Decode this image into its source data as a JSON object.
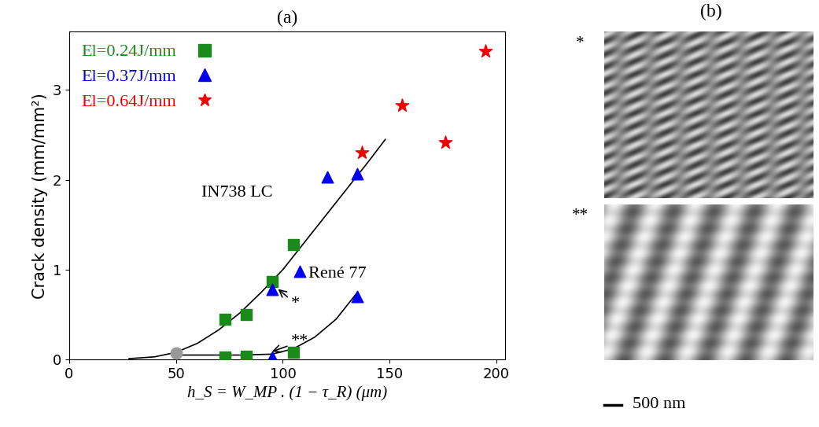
{
  "chart_data": {
    "type": "scatter",
    "title": "(a)",
    "x_label": "h_S = W_MP . (1 − τ_R) (μm)",
    "y_label": "Crack density (mm/mm²)",
    "xlim": [
      0,
      204
    ],
    "xticks": [
      0,
      50,
      100,
      150,
      200
    ],
    "ylim": [
      0,
      3.65
    ],
    "yticks": [
      0,
      1,
      2,
      3
    ],
    "legend": "upper left",
    "series": [
      {
        "name": "El=0.24J/mm",
        "color": "#1a8a1a",
        "marker": "square",
        "x": [
          73,
          83,
          95,
          105,
          73,
          83,
          105
        ],
        "values": [
          0.45,
          0.5,
          0.87,
          1.28,
          0.03,
          0.04,
          0.08
        ]
      },
      {
        "name": "El=0.37J/mm",
        "color": "#0000ee",
        "marker": "triangle",
        "x": [
          95,
          108,
          121,
          135,
          135,
          95
        ],
        "values": [
          0.78,
          0.98,
          2.03,
          2.07,
          0.7,
          0.03
        ]
      },
      {
        "name": "El=0.64J/mm",
        "color": "#ee0000",
        "marker": "star",
        "x": [
          137,
          156,
          176,
          195
        ],
        "values": [
          2.3,
          2.83,
          2.42,
          3.43
        ]
      },
      {
        "color": "#999999",
        "marker": "circle",
        "x": [
          50
        ],
        "values": [
          0.07
        ]
      }
    ],
    "curves": [
      {
        "label": "IN738 LC",
        "color": "#000000",
        "line_style": "solid",
        "x": [
          28,
          40,
          50,
          60,
          70,
          80,
          90,
          100,
          110,
          120,
          130,
          140,
          148
        ],
        "values": [
          0.01,
          0.03,
          0.08,
          0.18,
          0.33,
          0.52,
          0.75,
          1.0,
          1.3,
          1.6,
          1.9,
          2.2,
          2.45
        ]
      },
      {
        "label": "René 77",
        "color": "#000000",
        "line_style": "solid",
        "x": [
          50,
          80,
          95,
          105,
          115,
          125,
          135
        ],
        "values": [
          0.05,
          0.05,
          0.06,
          0.12,
          0.25,
          0.45,
          0.75
        ]
      }
    ],
    "annotations": [
      {
        "text": "*"
      },
      {
        "text": "**"
      }
    ]
  },
  "panel_b": {
    "title": "(b)",
    "images": [
      {
        "label": "*"
      },
      {
        "label": "**"
      }
    ],
    "scale_bar": "500 nm"
  }
}
